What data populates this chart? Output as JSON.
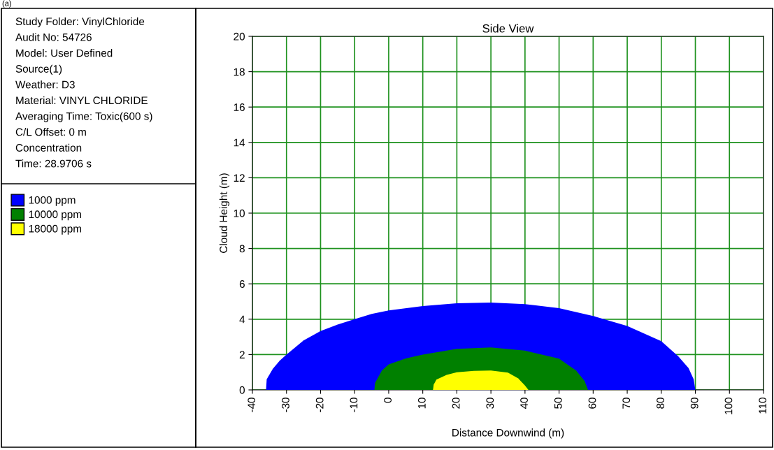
{
  "chart_data": {
    "type": "area",
    "title": "Side View",
    "xlabel": "Distance Downwind (m)",
    "ylabel": "Cloud Height (m)",
    "xlim": [
      -40,
      110
    ],
    "xticks": [
      -40,
      -30,
      -20,
      -10,
      0,
      10,
      20,
      30,
      40,
      50,
      60,
      70,
      80,
      90,
      100,
      110
    ],
    "ylim": [
      0,
      20
    ],
    "yticks": [
      0,
      2,
      4,
      6,
      8,
      10,
      12,
      14,
      16,
      18,
      20
    ],
    "grid": true,
    "legend": "left",
    "series": [
      {
        "name": "1000 ppm",
        "color": "#0000ff",
        "x": [
          -36,
          -35.8,
          -34,
          -32,
          -30,
          -25,
          -20,
          -15,
          -10,
          -5,
          0,
          10,
          20,
          30,
          40,
          50,
          60,
          70,
          80,
          85,
          88,
          89.5,
          90
        ],
        "values": [
          0,
          0.6,
          1.2,
          1.65,
          2.0,
          2.8,
          3.33,
          3.7,
          4.0,
          4.3,
          4.5,
          4.74,
          4.9,
          4.94,
          4.85,
          4.62,
          4.18,
          3.62,
          2.76,
          1.9,
          1.24,
          0.6,
          0
        ]
      },
      {
        "name": "10000 ppm",
        "color": "#008000",
        "x": [
          -4.2,
          -4,
          -2,
          0,
          5,
          10,
          20,
          30,
          40,
          50,
          55,
          57.5,
          58.5
        ],
        "values": [
          0,
          0.4,
          1.1,
          1.44,
          1.78,
          2.0,
          2.32,
          2.4,
          2.22,
          1.77,
          1.1,
          0.5,
          0
        ]
      },
      {
        "name": "18000 ppm",
        "color": "#ffff00",
        "x": [
          13,
          13.2,
          14,
          17,
          20,
          25,
          30,
          35,
          38,
          40,
          41
        ],
        "values": [
          0,
          0.3,
          0.58,
          0.85,
          1.0,
          1.08,
          1.1,
          0.98,
          0.65,
          0.25,
          0
        ]
      }
    ],
    "annotations": [
      "(a)",
      "Study Folder: VinylChloride",
      "Audit No: 54726",
      "Model: User Defined",
      "Source(1)",
      "Weather: D3",
      "Material: VINYL CHLORIDE",
      "Averaging Time: Toxic(600 s)",
      "C/L Offset: 0 m",
      "Concentration",
      "Time: 28.9706 s"
    ]
  }
}
